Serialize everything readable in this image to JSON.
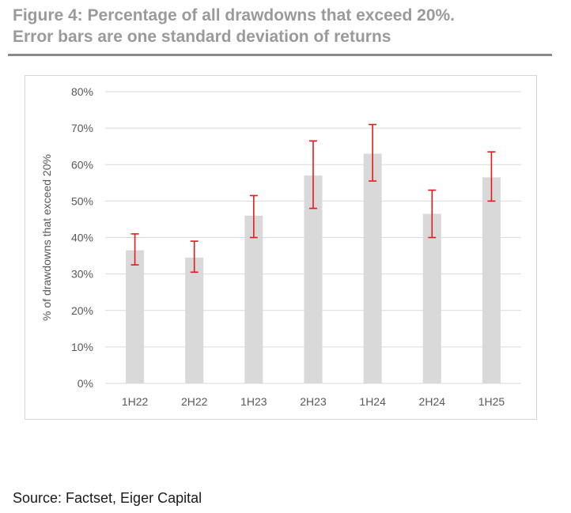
{
  "figure": {
    "title_line1": "Figure 4: Percentage of all drawdowns that exceed 20%.",
    "title_line2": "Error bars are one standard deviation of returns",
    "source": "Source: Factset, Eiger Capital"
  },
  "colors": {
    "title": "#9a9a9a",
    "rule": "#8a8a8a",
    "bar": "#d9d9d9",
    "error_bar": "#e8191c",
    "grid": "#d9d9d9",
    "axis_text": "#595959"
  },
  "chart_data": {
    "type": "bar",
    "title": "",
    "xlabel": "",
    "ylabel": "% of drawdowns that exceed 20%",
    "categories": [
      "1H22",
      "2H22",
      "1H23",
      "2H23",
      "1H24",
      "2H24",
      "1H25"
    ],
    "values": [
      36.5,
      34.5,
      46,
      57,
      63,
      46.5,
      56.5
    ],
    "error_low": [
      32.5,
      30.5,
      40,
      48,
      55.5,
      40,
      50
    ],
    "error_high": [
      41,
      39,
      51.5,
      66.5,
      71,
      53,
      63.5
    ],
    "ylim": [
      0,
      80
    ],
    "yticks": [
      0,
      10,
      20,
      30,
      40,
      50,
      60,
      70,
      80
    ],
    "ytick_labels": [
      "0%",
      "10%",
      "20%",
      "30%",
      "40%",
      "50%",
      "60%",
      "70%",
      "80%"
    ],
    "grid": true,
    "legend": "none"
  }
}
